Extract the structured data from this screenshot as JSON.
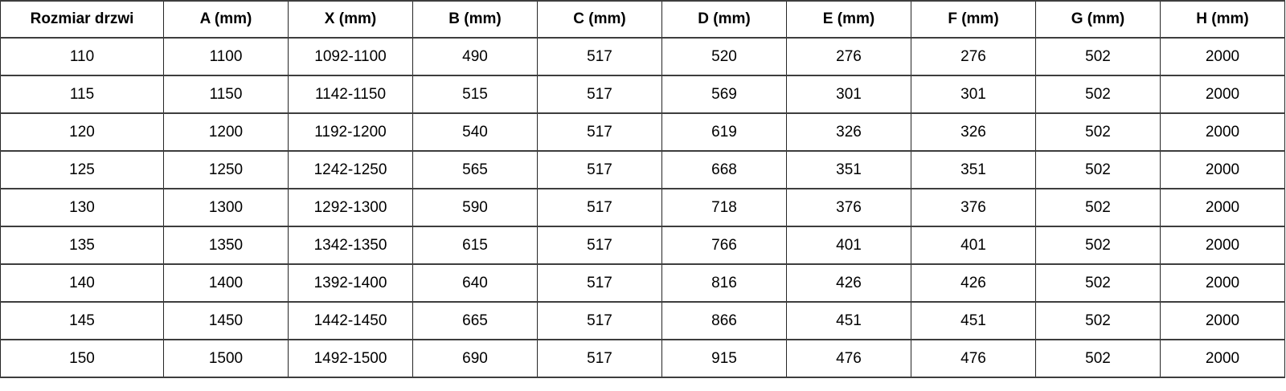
{
  "table": {
    "name": "door-dimensions-table",
    "columns": [
      "Rozmiar drzwi",
      "A (mm)",
      "X (mm)",
      "B (mm)",
      "C (mm)",
      "D (mm)",
      "E (mm)",
      "F (mm)",
      "G (mm)",
      "H (mm)"
    ],
    "rows": [
      [
        "110",
        "1100",
        "1092-1100",
        "490",
        "517",
        "520",
        "276",
        "276",
        "502",
        "2000"
      ],
      [
        "115",
        "1150",
        "1142-1150",
        "515",
        "517",
        "569",
        "301",
        "301",
        "502",
        "2000"
      ],
      [
        "120",
        "1200",
        "1192-1200",
        "540",
        "517",
        "619",
        "326",
        "326",
        "502",
        "2000"
      ],
      [
        "125",
        "1250",
        "1242-1250",
        "565",
        "517",
        "668",
        "351",
        "351",
        "502",
        "2000"
      ],
      [
        "130",
        "1300",
        "1292-1300",
        "590",
        "517",
        "718",
        "376",
        "376",
        "502",
        "2000"
      ],
      [
        "135",
        "1350",
        "1342-1350",
        "615",
        "517",
        "766",
        "401",
        "401",
        "502",
        "2000"
      ],
      [
        "140",
        "1400",
        "1392-1400",
        "640",
        "517",
        "816",
        "426",
        "426",
        "502",
        "2000"
      ],
      [
        "145",
        "1450",
        "1442-1450",
        "665",
        "517",
        "866",
        "451",
        "451",
        "502",
        "2000"
      ],
      [
        "150",
        "1500",
        "1492-1500",
        "690",
        "517",
        "915",
        "476",
        "476",
        "502",
        "2000"
      ]
    ]
  },
  "colors": {
    "border_vertical": "#262626",
    "border_horizontal": "#3d3d3d",
    "text": "#000000",
    "background": "#ffffff"
  }
}
